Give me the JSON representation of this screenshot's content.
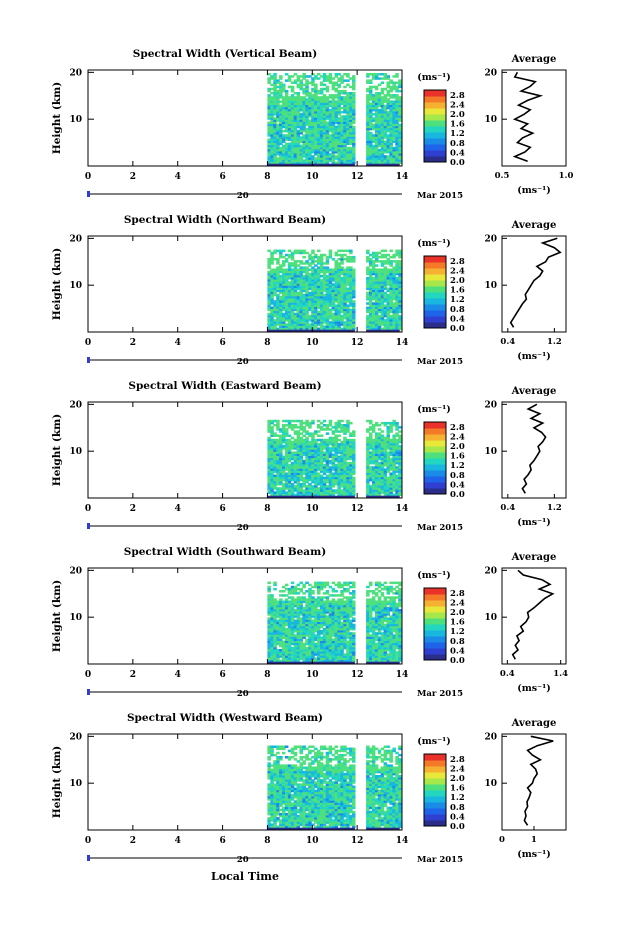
{
  "figure": {
    "xlabel": "Local Time",
    "date_label": "Mar 2015",
    "date_day": "20",
    "cbar_unit": "(ms⁻¹)",
    "avg_title": "Average",
    "avg_xlabel": "(ms⁻¹)",
    "colormap": [
      "#2a2d8a",
      "#2f3fd0",
      "#1f64e8",
      "#1a8ce8",
      "#19b6e0",
      "#22d6c0",
      "#4fe07e",
      "#a6e84a",
      "#e8e83a",
      "#f6b032",
      "#f47a2a",
      "#e8322a"
    ]
  },
  "chart_data": [
    {
      "type": "heatmap",
      "title": "Spectral Width (Vertical Beam)",
      "xlabel": "",
      "ylabel": "Height (km)",
      "xlim": [
        0,
        14
      ],
      "ylim": [
        0,
        20
      ],
      "xticks": [
        "0",
        "2",
        "4",
        "6",
        "8",
        "10",
        "12",
        "14"
      ],
      "yticks": [
        "10",
        "20"
      ],
      "colorbar": {
        "min": 0.0,
        "max": 2.8,
        "ticks": [
          "2.8",
          "2.4",
          "2.0",
          "1.6",
          "1.2",
          "0.8",
          "0.4",
          "0.0"
        ]
      },
      "data_segments": [
        [
          8.0,
          11.9
        ],
        [
          12.4,
          13.9
        ]
      ],
      "data_top_km": 19.5,
      "average_profile": {
        "xlim": [
          0.5,
          1.0
        ],
        "xticks": [
          "0.5",
          "1.0"
        ],
        "yticks": [
          "10",
          "20"
        ],
        "ylim": [
          0,
          20
        ],
        "height": [
          1,
          2,
          3,
          4,
          5,
          6,
          7,
          8,
          9,
          10,
          11,
          12,
          13,
          14,
          15,
          16,
          17,
          18,
          19,
          20
        ],
        "value": [
          0.7,
          0.6,
          0.68,
          0.72,
          0.62,
          0.66,
          0.74,
          0.65,
          0.7,
          0.6,
          0.67,
          0.72,
          0.63,
          0.7,
          0.8,
          0.65,
          0.72,
          0.76,
          0.6,
          0.62
        ]
      }
    },
    {
      "type": "heatmap",
      "title": "Spectral Width (Northward Beam)",
      "xlabel": "",
      "ylabel": "Height (km)",
      "xlim": [
        0,
        14
      ],
      "ylim": [
        0,
        20
      ],
      "xticks": [
        "0",
        "2",
        "4",
        "6",
        "8",
        "10",
        "12",
        "14"
      ],
      "yticks": [
        "10",
        "20"
      ],
      "colorbar": {
        "min": 0.0,
        "max": 2.8,
        "ticks": [
          "2.8",
          "2.4",
          "2.0",
          "1.6",
          "1.2",
          "0.8",
          "0.4",
          "0.0"
        ]
      },
      "data_segments": [
        [
          8.0,
          11.9
        ],
        [
          12.4,
          13.9
        ]
      ],
      "data_top_km": 17.5,
      "average_profile": {
        "xlim": [
          0.3,
          1.4
        ],
        "xticks": [
          "0.4",
          "1.2"
        ],
        "yticks": [
          "10",
          "20"
        ],
        "ylim": [
          0,
          20
        ],
        "height": [
          1,
          2,
          3,
          4,
          5,
          6,
          7,
          8,
          9,
          10,
          11,
          12,
          13,
          14,
          15,
          16,
          17,
          18,
          19,
          20
        ],
        "value": [
          0.5,
          0.45,
          0.5,
          0.55,
          0.6,
          0.65,
          0.72,
          0.7,
          0.75,
          0.8,
          0.85,
          0.95,
          1.0,
          0.9,
          1.05,
          1.1,
          1.3,
          1.2,
          1.0,
          1.25
        ]
      }
    },
    {
      "type": "heatmap",
      "title": "Spectral Width (Eastward Beam)",
      "xlabel": "",
      "ylabel": "Height (km)",
      "xlim": [
        0,
        14
      ],
      "ylim": [
        0,
        20
      ],
      "xticks": [
        "0",
        "2",
        "4",
        "6",
        "8",
        "10",
        "12",
        "14"
      ],
      "yticks": [
        "10",
        "20"
      ],
      "colorbar": {
        "min": 0.0,
        "max": 2.8,
        "ticks": [
          "2.8",
          "2.4",
          "2.0",
          "1.6",
          "1.2",
          "0.8",
          "0.4",
          "0.0"
        ]
      },
      "data_segments": [
        [
          8.0,
          11.9
        ],
        [
          12.4,
          13.9
        ]
      ],
      "data_top_km": 16.5,
      "average_profile": {
        "xlim": [
          0.3,
          1.4
        ],
        "xticks": [
          "0.4",
          "1.2"
        ],
        "yticks": [
          "10",
          "20"
        ],
        "ylim": [
          0,
          20
        ],
        "height": [
          1,
          2,
          3,
          4,
          5,
          6,
          7,
          8,
          9,
          10,
          11,
          12,
          13,
          14,
          15,
          16,
          17,
          18,
          19,
          20
        ],
        "value": [
          0.7,
          0.65,
          0.72,
          0.68,
          0.75,
          0.8,
          0.78,
          0.85,
          0.9,
          0.95,
          0.92,
          1.0,
          1.05,
          0.98,
          0.85,
          1.0,
          0.8,
          0.95,
          0.75,
          0.9
        ]
      }
    },
    {
      "type": "heatmap",
      "title": "Spectral Width (Southward Beam)",
      "xlabel": "",
      "ylabel": "Height (km)",
      "xlim": [
        0,
        14
      ],
      "ylim": [
        0,
        20
      ],
      "xticks": [
        "0",
        "2",
        "4",
        "6",
        "8",
        "10",
        "12",
        "14"
      ],
      "yticks": [
        "10",
        "20"
      ],
      "colorbar": {
        "min": 0.0,
        "max": 2.8,
        "ticks": [
          "2.8",
          "2.4",
          "2.0",
          "1.6",
          "1.2",
          "0.8",
          "0.4",
          "0.0"
        ]
      },
      "data_segments": [
        [
          8.0,
          11.9
        ],
        [
          12.4,
          13.9
        ]
      ],
      "data_top_km": 17.5,
      "average_profile": {
        "xlim": [
          0.3,
          1.5
        ],
        "xticks": [
          "0.4",
          "1.4"
        ],
        "yticks": [
          "10",
          "20"
        ],
        "ylim": [
          0,
          20
        ],
        "height": [
          1,
          2,
          3,
          4,
          5,
          6,
          7,
          8,
          9,
          10,
          11,
          12,
          13,
          14,
          15,
          16,
          17,
          18,
          19,
          20
        ],
        "value": [
          0.55,
          0.5,
          0.6,
          0.55,
          0.62,
          0.58,
          0.7,
          0.65,
          0.75,
          0.8,
          0.78,
          0.9,
          1.0,
          1.1,
          1.25,
          1.0,
          1.2,
          1.05,
          0.7,
          0.6
        ]
      }
    },
    {
      "type": "heatmap",
      "title": "Spectral Width (Westward Beam)",
      "xlabel": "Local Time",
      "ylabel": "Height (km)",
      "xlim": [
        0,
        14
      ],
      "ylim": [
        0,
        20
      ],
      "xticks": [
        "0",
        "2",
        "4",
        "6",
        "8",
        "10",
        "12",
        "14"
      ],
      "yticks": [
        "10",
        "20"
      ],
      "colorbar": {
        "min": 0.0,
        "max": 2.8,
        "ticks": [
          "2.8",
          "2.4",
          "2.0",
          "1.6",
          "1.2",
          "0.8",
          "0.4",
          "0.0"
        ]
      },
      "data_segments": [
        [
          8.0,
          11.9
        ],
        [
          12.4,
          13.9
        ]
      ],
      "data_top_km": 18.0,
      "average_profile": {
        "xlim": [
          0,
          2
        ],
        "xticks": [
          "0",
          "1"
        ],
        "yticks": [
          "10",
          "20"
        ],
        "ylim": [
          0,
          20
        ],
        "height": [
          1,
          2,
          3,
          4,
          5,
          6,
          7,
          8,
          9,
          10,
          11,
          12,
          13,
          14,
          15,
          16,
          17,
          18,
          19,
          20
        ],
        "value": [
          0.8,
          0.7,
          0.75,
          0.72,
          0.8,
          0.78,
          0.85,
          0.9,
          0.8,
          0.95,
          1.0,
          1.1,
          1.05,
          0.9,
          1.2,
          0.95,
          0.8,
          1.1,
          1.6,
          0.9
        ]
      }
    }
  ]
}
